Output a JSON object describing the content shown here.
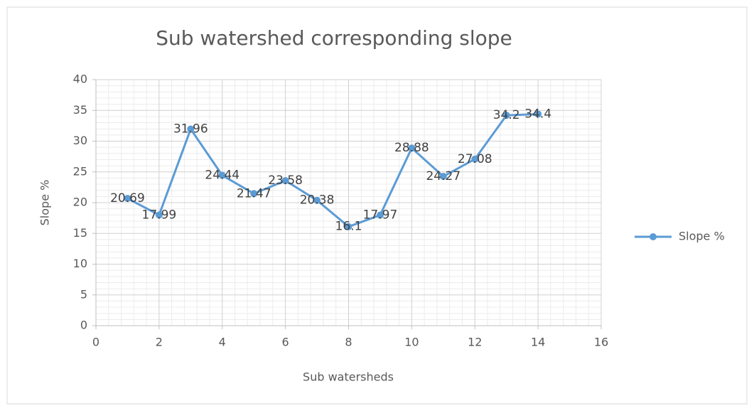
{
  "chart_data": {
    "type": "line",
    "title": "Sub watershed corresponding slope",
    "x_label": "Sub watersheds",
    "y_label": "Slope %",
    "x": [
      1,
      2,
      3,
      4,
      5,
      6,
      7,
      8,
      9,
      10,
      11,
      12,
      13,
      14
    ],
    "series": [
      {
        "name": "Slope %",
        "color": "#5b9bd5",
        "values": [
          20.69,
          17.99,
          31.96,
          24.44,
          21.47,
          23.58,
          20.38,
          16.1,
          17.97,
          28.88,
          24.27,
          27.08,
          34.2,
          34.4
        ]
      }
    ],
    "xlim": [
      0,
      16
    ],
    "xticks": [
      0,
      2,
      4,
      6,
      8,
      10,
      12,
      14,
      16
    ],
    "ylim": [
      0,
      40
    ],
    "yticks": [
      0,
      5,
      10,
      15,
      20,
      25,
      30,
      35,
      40
    ],
    "grid": true,
    "minor_grid": true,
    "data_labels": true,
    "legend": "right"
  }
}
